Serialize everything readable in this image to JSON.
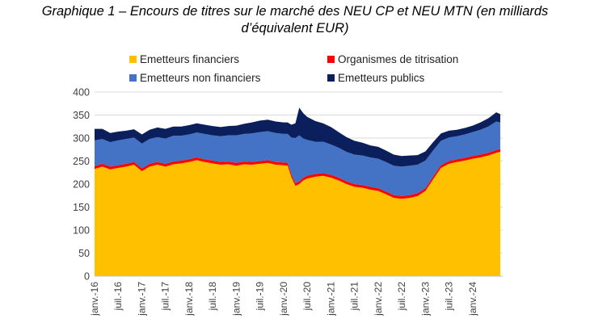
{
  "title_line1": "Graphique 1 – Encours de titres sur le marché des NEU CP et NEU MTN (en milliards",
  "title_line2": "d’équivalent EUR)",
  "colors": {
    "financiers": "#FFC000",
    "titrisation": "#FF0000",
    "non_financiers": "#4472C4",
    "publics": "#0B1F5C",
    "grid": "#D9D9D9",
    "axis_text": "#404040"
  },
  "chart_data": {
    "type": "area",
    "stacked": true,
    "title": "Graphique 1 – Encours de titres sur le marché des NEU CP et NEU MTN (en milliards d’équivalent EUR)",
    "xlabel": "",
    "ylabel": "",
    "ylim": [
      0,
      400
    ],
    "yticks": [
      0,
      50,
      100,
      150,
      200,
      250,
      300,
      350,
      400
    ],
    "grid": true,
    "legend": "top",
    "x_tick_labels": [
      "janv.-16",
      "juil.-16",
      "janv.-17",
      "juil.-17",
      "janv.-18",
      "juil.-18",
      "janv.-19",
      "juil.-19",
      "janv.-20",
      "juil.-20",
      "janv.-21",
      "juil.-21",
      "janv.-22",
      "juil.-22",
      "janv.-23",
      "juil.-23",
      "janv.-24"
    ],
    "x": [
      "2016-01",
      "2016-03",
      "2016-05",
      "2016-07",
      "2016-09",
      "2016-11",
      "2017-01",
      "2017-03",
      "2017-05",
      "2017-07",
      "2017-09",
      "2017-11",
      "2018-01",
      "2018-03",
      "2018-05",
      "2018-07",
      "2018-09",
      "2018-11",
      "2019-01",
      "2019-03",
      "2019-05",
      "2019-07",
      "2019-09",
      "2019-11",
      "2020-01",
      "2020-02",
      "2020-03",
      "2020-04",
      "2020-05",
      "2020-06",
      "2020-07",
      "2020-09",
      "2020-11",
      "2021-01",
      "2021-03",
      "2021-05",
      "2021-07",
      "2021-09",
      "2021-11",
      "2022-01",
      "2022-03",
      "2022-05",
      "2022-07",
      "2022-09",
      "2022-11",
      "2023-01",
      "2023-03",
      "2023-05",
      "2023-07",
      "2023-09",
      "2023-11",
      "2024-01",
      "2024-03",
      "2024-05",
      "2024-07",
      "2024-08"
    ],
    "series": [
      {
        "name": "Emetteurs financiers",
        "values": [
          233,
          238,
          232,
          235,
          238,
          242,
          228,
          238,
          242,
          238,
          243,
          245,
          248,
          252,
          248,
          245,
          242,
          243,
          240,
          243,
          242,
          244,
          246,
          242,
          241,
          240,
          215,
          196,
          200,
          208,
          212,
          216,
          218,
          214,
          208,
          200,
          194,
          192,
          188,
          185,
          178,
          170,
          168,
          170,
          174,
          185,
          210,
          235,
          244,
          248,
          251,
          255,
          258,
          262,
          268,
          270
        ]
      },
      {
        "name": "Organismes de titrisation",
        "values": [
          6,
          6,
          6,
          6,
          6,
          6,
          6,
          6,
          6,
          6,
          6,
          6,
          6,
          6,
          6,
          6,
          6,
          6,
          6,
          6,
          6,
          6,
          6,
          6,
          6,
          6,
          6,
          6,
          6,
          6,
          6,
          6,
          6,
          6,
          6,
          6,
          6,
          6,
          6,
          6,
          6,
          6,
          6,
          6,
          6,
          6,
          6,
          6,
          6,
          6,
          6,
          6,
          6,
          6,
          6,
          6
        ]
      },
      {
        "name": "Emetteurs non financiers",
        "values": [
          56,
          54,
          53,
          54,
          54,
          53,
          54,
          54,
          54,
          55,
          56,
          54,
          54,
          54,
          55,
          55,
          56,
          57,
          60,
          60,
          62,
          63,
          63,
          63,
          62,
          63,
          80,
          98,
          100,
          85,
          78,
          70,
          68,
          66,
          65,
          64,
          64,
          64,
          64,
          64,
          64,
          64,
          64,
          64,
          62,
          60,
          57,
          53,
          51,
          50,
          51,
          52,
          54,
          57,
          62,
          58
        ]
      },
      {
        "name": "Emetteurs publics",
        "values": [
          25,
          22,
          20,
          19,
          18,
          18,
          20,
          20,
          21,
          21,
          20,
          20,
          20,
          20,
          20,
          20,
          20,
          20,
          21,
          22,
          24,
          25,
          25,
          25,
          25,
          25,
          28,
          32,
          60,
          55,
          50,
          45,
          40,
          38,
          34,
          32,
          30,
          28,
          26,
          26,
          25,
          24,
          23,
          22,
          21,
          20,
          18,
          16,
          15,
          14,
          14,
          14,
          16,
          18,
          20,
          18
        ]
      }
    ]
  },
  "legend": [
    {
      "label": "Emetteurs financiers",
      "color": "#FFC000"
    },
    {
      "label": "Organismes de titrisation",
      "color": "#FF0000"
    },
    {
      "label": "Emetteurs non financiers",
      "color": "#4472C4"
    },
    {
      "label": "Emetteurs publics",
      "color": "#0B1F5C"
    }
  ]
}
